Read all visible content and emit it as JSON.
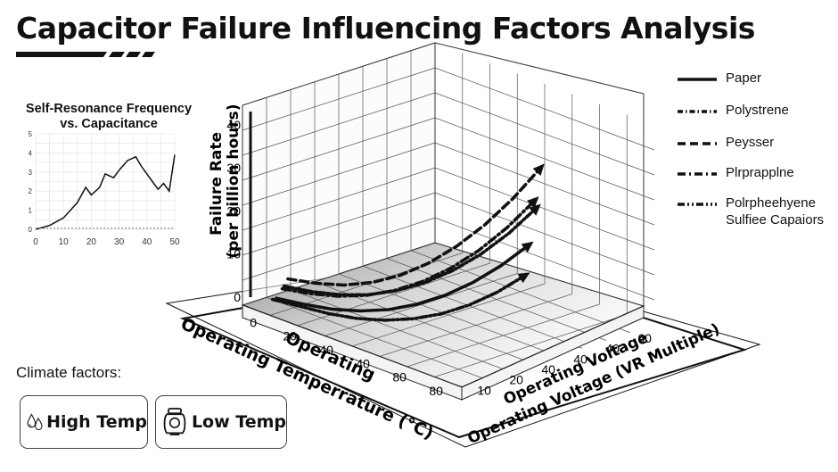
{
  "title": "Capacitor Failure Influencing Factors Analysis",
  "inset": {
    "title_line1": "Self-Resonance Frequency",
    "title_line2": "vs. Capacitance"
  },
  "chart_data": [
    {
      "type": "line",
      "title": "Self-Resonance Frequency vs. Capacitance",
      "xlim": [
        0,
        50
      ],
      "ylim": [
        0,
        5
      ],
      "x_ticks": [
        "0",
        "10",
        "20",
        "30",
        "40",
        "50"
      ],
      "y_ticks": [
        "0",
        "1",
        "2",
        "3",
        "4",
        "5"
      ],
      "grid": true,
      "series": [
        {
          "x": [
            0,
            5,
            10,
            15,
            18,
            20,
            23,
            25,
            28,
            30,
            33,
            36,
            38,
            40,
            42,
            44,
            46,
            48,
            50
          ],
          "y": [
            0,
            0.2,
            0.6,
            1.4,
            2.2,
            1.8,
            2.2,
            2.9,
            2.7,
            3.1,
            3.6,
            3.8,
            3.3,
            2.9,
            2.5,
            2.1,
            2.4,
            2.0,
            3.9
          ]
        },
        {
          "style": "dotted",
          "x": [
            0,
            50
          ],
          "y": [
            0.05,
            0.05
          ]
        }
      ]
    },
    {
      "type": "line-3d",
      "zlabel": "Failure Rate (per billion hours)",
      "z_ticks": [
        "0",
        "10",
        "20",
        "30",
        "40"
      ],
      "zlim": [
        0,
        45
      ],
      "xlabel_1": "Operating",
      "xlabel_2": "Operating Temperrature (°C)",
      "x_ticks": [
        "0",
        "20",
        "40",
        "40",
        "80",
        "80"
      ],
      "ylabel_1": "Operating Voltage",
      "ylabel_2": "Operating Voltage (VR Multiple)",
      "y_ticks": [
        "10",
        "20",
        "40",
        "40",
        "40",
        "60"
      ],
      "grid": true,
      "series": [
        {
          "name": "Paper",
          "style": "solid",
          "z": [
            2.3,
            2.3,
            2.6,
            3.6,
            5.3,
            7.9,
            11.3,
            15.6,
            20.8,
            26.9
          ]
        },
        {
          "name": "Polystrene",
          "style": "dashdot-fine",
          "z": [
            4.5,
            4.6,
            5.3,
            6.7,
            9.0,
            12.2,
            16.3,
            21.4,
            27.5,
            34.7
          ]
        },
        {
          "name": "Peysser",
          "style": "dashed",
          "z": [
            5.8,
            6.2,
            7.2,
            9.2,
            12.2,
            16.3,
            21.5,
            27.7,
            35.0,
            43.4
          ]
        },
        {
          "name": "Plrprapplne",
          "style": "dashdot",
          "z": [
            4.0,
            4.3,
            5.1,
            6.7,
            9.2,
            12.6,
            17.0,
            22.4,
            28.9,
            36.5
          ]
        },
        {
          "name": "Polrpheehyene Sulfiee Capaiors",
          "style": "dashdotdot",
          "z": [
            2.3,
            2.1,
            1.9,
            2.2,
            3.2,
            4.9,
            7.4,
            10.8,
            15.1,
            20.3
          ]
        }
      ]
    }
  ],
  "legend": [
    {
      "line1": "Paper",
      "line2": ""
    },
    {
      "line1": "Polystrene",
      "line2": ""
    },
    {
      "line1": "Peysser",
      "line2": ""
    },
    {
      "line1": "Plrprapplne",
      "line2": ""
    },
    {
      "line1": "Polrpheehyene",
      "line2": "Sulfiee Capaiors"
    }
  ],
  "climate": {
    "label": "Climate factors:",
    "high_temp_label": "High Temp",
    "low_temp_label": "Low Temp",
    "high_temp_icon": "water-drops-icon",
    "low_temp_icon": "heater-icon"
  }
}
